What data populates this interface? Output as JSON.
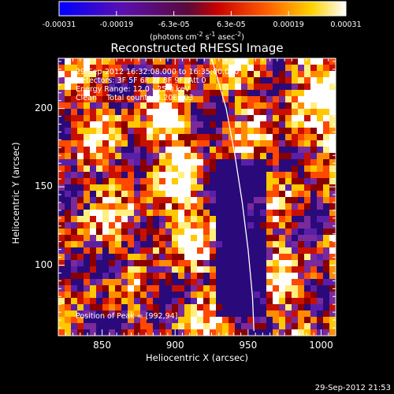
{
  "colorbar": {
    "tick_labels": [
      "-0.00031",
      "-0.00019",
      "-6.3e-05",
      "6.3e-05",
      "0.00019",
      "0.00031"
    ],
    "range": [
      -0.00031,
      0.00031
    ],
    "units_prefix": "(photons cm",
    "units_exp1": "-2",
    "units_mid": " s",
    "units_exp2": "-1",
    "units_mid2": " asec",
    "units_exp3": "-2",
    "units_suffix": ")"
  },
  "title": "Reconstructed RHESSI Image",
  "annotations": {
    "time_range": "29-Sep-2012 16:32:08.000 to 16:35:00.000",
    "detectors": "Detectors: 3F 5F 6F 7F 8F 9F, Att 0",
    "energy_range": "Energy Range: 12.0 - 25.0 keV",
    "clean_label": "Clean",
    "total_counts": "Total counts: 3.20E+03",
    "peak_position": "Position of Peak = [992,94]"
  },
  "footer": {
    "date": "29-Sep-2012 21:53"
  },
  "colors": {
    "background": "#000000",
    "foreground": "#ffffff",
    "limb_line": "#ffffff"
  },
  "chart_data": {
    "type": "heatmap",
    "title": "Reconstructed RHESSI Image",
    "xlabel": "Heliocentric X (arcsec)",
    "ylabel": "Heliocentric Y (arcsec)",
    "xlim": [
      820,
      1010
    ],
    "ylim": [
      55,
      232
    ],
    "x_ticks": [
      850,
      900,
      950,
      1000
    ],
    "y_ticks": [
      100,
      150,
      200
    ],
    "colormap": "blue-purple-red-orange-yellow-white",
    "limb_curve": [
      [
        925,
        232
      ],
      [
        935,
        200
      ],
      [
        941,
        170
      ],
      [
        946,
        140
      ],
      [
        950,
        110
      ],
      [
        953,
        80
      ],
      [
        954,
        58
      ]
    ],
    "grid": false
  }
}
